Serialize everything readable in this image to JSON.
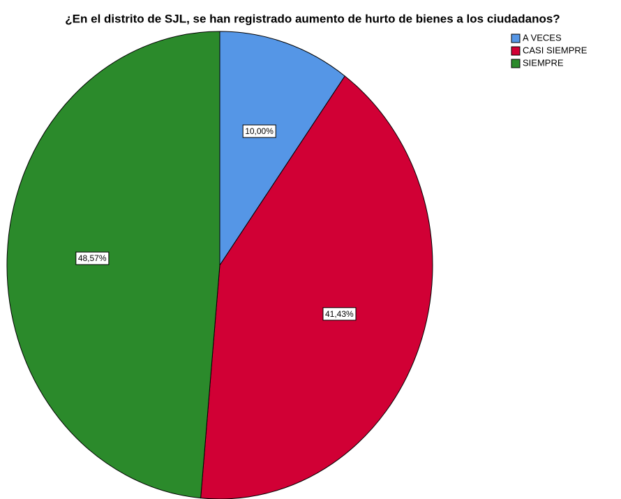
{
  "chart_data": {
    "type": "pie",
    "title": "¿En el distrito de SJL, se han registrado aumento de hurto de bienes a los ciudadanos?",
    "categories": [
      "A VECES",
      "CASI SIEMPRE",
      "SIEMPRE"
    ],
    "values": [
      10,
      41.43,
      48.57
    ],
    "value_labels": [
      "10,00%",
      "41,43%",
      "48,57%"
    ],
    "colors": [
      "#5596e6",
      "#d10035",
      "#2b8a2b"
    ],
    "legend": "upper right"
  }
}
